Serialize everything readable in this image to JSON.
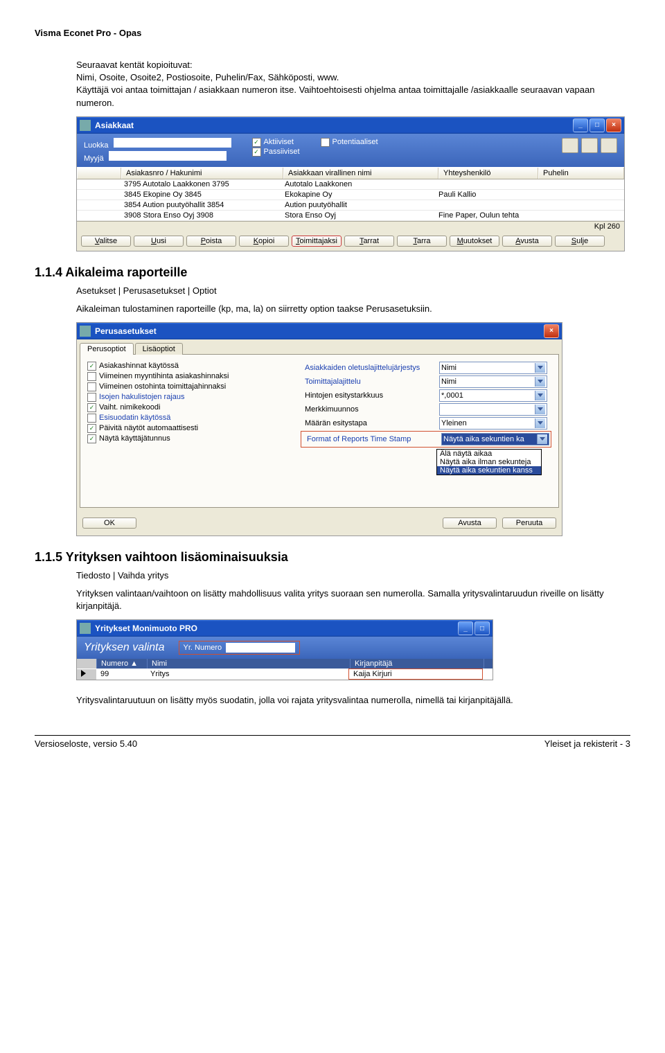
{
  "doc": {
    "header": "Visma Econet Pro - Opas",
    "intro1": "Seuraavat kentät kopioituvat:",
    "intro2": "Nimi, Osoite, Osoite2, Postiosoite, Puhelin/Fax, Sähköposti, www.",
    "intro3": "Käyttäjä voi antaa toimittajan / asiakkaan numeron itse. Vaihtoehtoisesti ohjelma antaa toimittajalle /asiakkaalle seuraavan vapaan numeron.",
    "sec114_title": "1.1.4  Aikaleima raporteille",
    "sec114_sub": "Asetukset | Perusasetukset | Optiot",
    "sec114_body": "Aikaleiman tulostaminen raporteille (kp, ma, la) on siirretty option taakse Perusasetuksiin.",
    "sec115_title": "1.1.5  Yrityksen vaihtoon lisäominaisuuksia",
    "sec115_sub": "Tiedosto | Vaihda yritys",
    "sec115_body": "Yrityksen valintaan/vaihtoon on lisätty mahdollisuus valita yritys suoraan sen numerolla. Samalla yritysvalintaruudun riveille on lisätty kirjanpitäjä.",
    "sec115_body2": "Yritysvalintaruutuun on lisätty myös suodatin, jolla voi rajata yritysvalintaa numerolla, nimellä tai kirjanpitäjällä.",
    "footer_left": "Versioseloste, versio 5.40",
    "footer_right": "Yleiset ja rekisterit - 3"
  },
  "asiakkaat": {
    "title": "Asiakkaat",
    "label_luokka": "Luokka",
    "label_myyja": "Myyjä",
    "chk_akt": "Aktiiviset",
    "chk_pass": "Passiiviset",
    "chk_pot": "Potentiaaliset",
    "columns": {
      "c1": "Asiakasnro / Hakunimi",
      "c2": "Asiakkaan virallinen nimi",
      "c3": "Yhteyshenkilö",
      "c4": "Puhelin"
    },
    "rows": [
      {
        "c1": "3795 Autotalo Laakkonen 3795",
        "c2": "Autotalo Laakkonen",
        "c3": "",
        "c4": ""
      },
      {
        "c1": "3845 Ekopine Oy 3845",
        "c2": "Ekokapine Oy",
        "c3": "Pauli Kallio",
        "c4": ""
      },
      {
        "c1": "3854 Aution puutyöhallit 3854",
        "c2": "Aution puutyöhallit",
        "c3": "",
        "c4": ""
      },
      {
        "c1": "3908 Stora Enso Oyj 3908",
        "c2": "Stora Enso Oyj",
        "c3": "Fine Paper, Oulun tehta",
        "c4": ""
      }
    ],
    "kpl": "Kpl  260",
    "buttons": {
      "valitse": "Valitse",
      "uusi": "Uusi",
      "poista": "Poista",
      "kopioi": "Kopioi",
      "toimittajaksi": "Toimittajaksi",
      "tarrat": "Tarrat",
      "tarra": "Tarra",
      "muutokset": "Muutokset",
      "avusta": "Avusta",
      "sulje": "Sulje"
    }
  },
  "perusasetukset": {
    "title": "Perusasetukset",
    "tab1": "Perusoptiot",
    "tab2": "Lisäoptiot",
    "left": {
      "o1": "Asiakashinnat käytössä",
      "o2": "Viimeinen myyntihinta asiakashinnaksi",
      "o3": "Viimeinen ostohinta toimittajahinnaksi",
      "o4": "Isojen hakulistojen rajaus",
      "o5": "Vaiht. nimikekoodi",
      "o6": "Esisuodatin käytössä",
      "o7": "Päivitä näytöt automaattisesti",
      "o8": "Näytä käyttäjätunnus"
    },
    "left_checked": {
      "o1": true,
      "o2": false,
      "o3": false,
      "o4": false,
      "o5": true,
      "o6": false,
      "o7": true,
      "o8": true
    },
    "right": [
      {
        "label": "Asiakkaiden oletuslajittelujärjestys",
        "value": "Nimi"
      },
      {
        "label": "Toimittajalajittelu",
        "value": "Nimi"
      },
      {
        "label": "Hintojen esitystarkkuus",
        "value": "*,0001"
      },
      {
        "label": "Merkkimuunnos",
        "value": ""
      },
      {
        "label": "Määrän esitystapa",
        "value": "Yleinen"
      },
      {
        "label": "Format of Reports Time Stamp",
        "value": "Näytä aika sekuntien ka",
        "highlight": true
      }
    ],
    "dropdown": [
      {
        "label": "Älä näytä aikaa",
        "sel": false
      },
      {
        "label": "Näytä aika ilman sekunteja",
        "sel": false
      },
      {
        "label": "Näytä aika sekuntien kanss",
        "sel": true
      }
    ],
    "ok": "OK",
    "avusta": "Avusta",
    "peruuta": "Peruuta"
  },
  "yritykset": {
    "title": "Yritykset  Monimuoto PRO",
    "band": "Yrityksen valinta",
    "yrnum_label": "Yr. Numero",
    "columns": {
      "c0": "Numero",
      "c1": "Nimi",
      "c2": "Kirjanpitäjä"
    },
    "row": {
      "num": "99",
      "nimi": "Yritys",
      "kirj": "Kaija Kirjuri"
    }
  }
}
